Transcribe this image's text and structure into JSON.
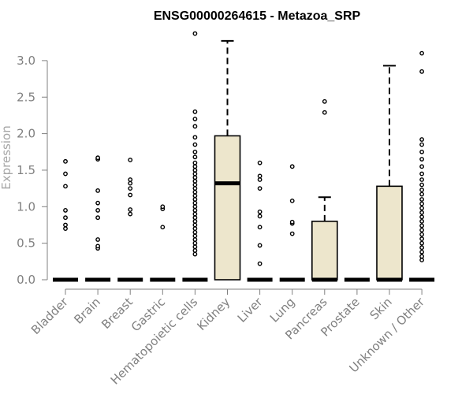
{
  "chart_data": {
    "type": "box",
    "title": "ENSG00000264615 - Metazoa_SRP",
    "xlabel": "",
    "ylabel": "Expression",
    "ylim": [
      0,
      3.4
    ],
    "yticks": [
      "0.0",
      "0.5",
      "1.0",
      "1.5",
      "2.0",
      "2.5",
      "3.0"
    ],
    "grid": false,
    "box_fill": "#ede6cc",
    "categories": [
      "Bladder",
      "Brain",
      "Breast",
      "Gastric",
      "Hematopoietic cells",
      "Kidney",
      "Liver",
      "Lung",
      "Pancreas",
      "Prostate",
      "Skin",
      "Unknown / Other"
    ],
    "boxes": [
      {
        "category": "Bladder",
        "q1": 0,
        "median": 0,
        "q3": 0,
        "whisker_low": 0,
        "whisker_high": 0,
        "outliers": [
          0.7,
          0.75,
          0.85,
          0.95,
          1.28,
          1.45,
          1.62
        ]
      },
      {
        "category": "Brain",
        "q1": 0,
        "median": 0,
        "q3": 0,
        "whisker_low": 0,
        "whisker_high": 0,
        "outliers": [
          0.43,
          0.46,
          0.55,
          0.85,
          0.95,
          1.05,
          1.22,
          1.65,
          1.67
        ]
      },
      {
        "category": "Breast",
        "q1": 0,
        "median": 0,
        "q3": 0,
        "whisker_low": 0,
        "whisker_high": 0,
        "outliers": [
          0.9,
          0.96,
          1.16,
          1.25,
          1.32,
          1.37,
          1.64
        ]
      },
      {
        "category": "Gastric",
        "q1": 0,
        "median": 0,
        "q3": 0,
        "whisker_low": 0,
        "whisker_high": 0,
        "outliers": [
          0.72,
          0.97,
          1.0
        ]
      },
      {
        "category": "Hematopoietic cells",
        "q1": 0,
        "median": 0,
        "q3": 0,
        "whisker_low": 0,
        "whisker_high": 0,
        "outliers": [
          0.35,
          0.4,
          0.45,
          0.5,
          0.55,
          0.6,
          0.65,
          0.7,
          0.75,
          0.8,
          0.85,
          0.9,
          0.95,
          1.0,
          1.05,
          1.1,
          1.15,
          1.2,
          1.25,
          1.3,
          1.35,
          1.4,
          1.45,
          1.5,
          1.55,
          1.6,
          1.68,
          1.75,
          1.85,
          1.95,
          2.1,
          2.2,
          2.3,
          3.37
        ]
      },
      {
        "category": "Kidney",
        "q1": 0,
        "median": 1.32,
        "q3": 1.97,
        "whisker_low": 0,
        "whisker_high": 3.27,
        "outliers": []
      },
      {
        "category": "Liver",
        "q1": 0,
        "median": 0,
        "q3": 0,
        "whisker_low": 0,
        "whisker_high": 0,
        "outliers": [
          0.22,
          0.47,
          0.72,
          0.87,
          0.93,
          1.25,
          1.37,
          1.42,
          1.6
        ]
      },
      {
        "category": "Lung",
        "q1": 0,
        "median": 0,
        "q3": 0,
        "whisker_low": 0,
        "whisker_high": 0,
        "outliers": [
          0.63,
          0.77,
          0.79,
          1.08,
          1.55
        ]
      },
      {
        "category": "Pancreas",
        "q1": 0,
        "median": 0,
        "q3": 0.8,
        "whisker_low": 0,
        "whisker_high": 1.13,
        "outliers": [
          2.29,
          2.44
        ]
      },
      {
        "category": "Prostate",
        "q1": 0,
        "median": 0,
        "q3": 0,
        "whisker_low": 0,
        "whisker_high": 0,
        "outliers": []
      },
      {
        "category": "Skin",
        "q1": 0,
        "median": 0,
        "q3": 1.28,
        "whisker_low": 0,
        "whisker_high": 2.93,
        "outliers": []
      },
      {
        "category": "Unknown / Other",
        "q1": 0,
        "median": 0,
        "q3": 0,
        "whisker_low": 0,
        "whisker_high": 0,
        "outliers": [
          0.27,
          0.32,
          0.38,
          0.44,
          0.5,
          0.56,
          0.62,
          0.68,
          0.74,
          0.8,
          0.86,
          0.92,
          0.98,
          1.04,
          1.1,
          1.17,
          1.23,
          1.3,
          1.37,
          1.45,
          1.55,
          1.65,
          1.75,
          1.85,
          1.92,
          2.85,
          3.1
        ]
      }
    ]
  }
}
